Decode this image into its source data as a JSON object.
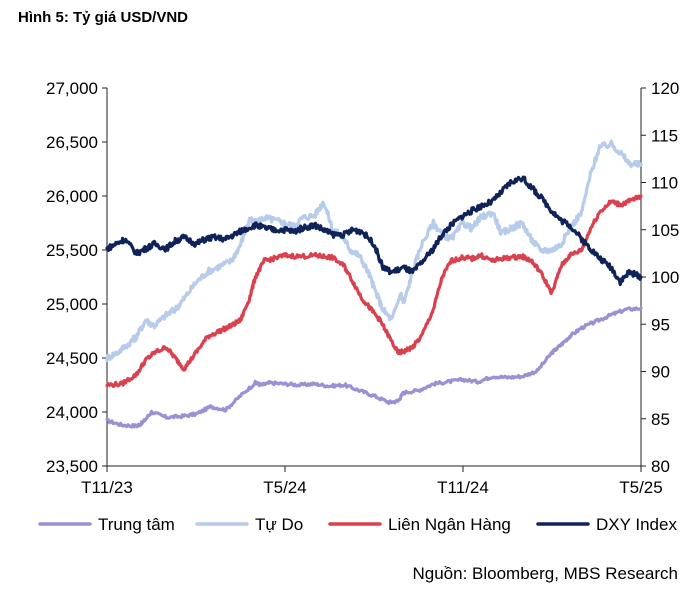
{
  "title": "Hình 5: Tỷ giá USD/VND",
  "source": "Nguồn: Bloomberg, MBS Research",
  "colors": {
    "trung_tam": "#9C8FD3",
    "tu_do": "#B7CCEB",
    "lien_ngan_hang": "#D9414F",
    "dxy": "#0F2358",
    "axis": "#222222"
  },
  "chart_data": {
    "type": "line",
    "x_ticks": [
      "T11/23",
      "T5/24",
      "T11/24",
      "T5/25"
    ],
    "x_tick_positions": [
      0,
      6,
      12,
      18
    ],
    "x_range": [
      0,
      18
    ],
    "y_left": {
      "ylim": [
        23500,
        27000
      ],
      "ticks": [
        23500,
        24000,
        24500,
        25000,
        25500,
        26000,
        26500,
        27000
      ],
      "tick_labels": [
        "23,500",
        "24,000",
        "24,500",
        "25,000",
        "25,500",
        "26,000",
        "26,500",
        "27,000"
      ]
    },
    "y_right": {
      "ylim": [
        80,
        120
      ],
      "ticks": [
        80,
        85,
        90,
        95,
        100,
        105,
        110,
        115,
        120
      ],
      "tick_labels": [
        "80",
        "85",
        "90",
        "95",
        "100",
        "105",
        "110",
        "115",
        "120"
      ]
    },
    "grid": false,
    "legend": "bottom",
    "series": [
      {
        "name": "Trung tâm",
        "axis": "left",
        "x": [
          0,
          0.5,
          1,
          1.2,
          1.5,
          2,
          2.5,
          3,
          3.5,
          4,
          4.5,
          5,
          5.2,
          5.5,
          6,
          6.5,
          7,
          7.5,
          8,
          8.5,
          9,
          9.5,
          9.8,
          10,
          10.5,
          11,
          11.5,
          12,
          12.5,
          13,
          13.5,
          14,
          14.5,
          15,
          15.3,
          15.6,
          16,
          16.5,
          17,
          17.5,
          18
        ],
        "values": [
          23920,
          23880,
          23870,
          23900,
          24000,
          23950,
          23960,
          23980,
          24050,
          24020,
          24150,
          24270,
          24250,
          24270,
          24260,
          24250,
          24260,
          24240,
          24250,
          24200,
          24150,
          24090,
          24100,
          24180,
          24200,
          24260,
          24280,
          24300,
          24280,
          24330,
          24320,
          24330,
          24380,
          24550,
          24620,
          24700,
          24780,
          24840,
          24900,
          24950,
          24960
        ]
      },
      {
        "name": "Tự Do",
        "axis": "left",
        "x": [
          0,
          0.4,
          0.8,
          1,
          1.3,
          1.6,
          2,
          2.3,
          2.6,
          3,
          3.4,
          3.8,
          4.2,
          4.5,
          4.8,
          5,
          5.3,
          5.6,
          6,
          6.3,
          6.6,
          7,
          7.3,
          7.6,
          8,
          8.2,
          8.5,
          8.8,
          9,
          9.3,
          9.6,
          9.9,
          10,
          10.3,
          10.6,
          11,
          11.3,
          11.6,
          12,
          12.3,
          12.6,
          13,
          13.3,
          13.6,
          14,
          14.3,
          14.6,
          15,
          15.3,
          15.6,
          16,
          16.3,
          16.6,
          17,
          17.3,
          17.6,
          18
        ],
        "values": [
          24500,
          24560,
          24650,
          24700,
          24850,
          24800,
          24900,
          24950,
          25050,
          25200,
          25300,
          25350,
          25400,
          25550,
          25780,
          25750,
          25800,
          25780,
          25750,
          25720,
          25800,
          25820,
          25950,
          25700,
          25600,
          25500,
          25450,
          25300,
          25150,
          24950,
          24850,
          25100,
          25000,
          25300,
          25550,
          25750,
          25650,
          25600,
          25750,
          25700,
          25800,
          25850,
          25650,
          25700,
          25750,
          25600,
          25500,
          25500,
          25550,
          25700,
          25850,
          26200,
          26450,
          26480,
          26400,
          26300,
          26290
        ]
      },
      {
        "name": "Liên Ngân Hàng",
        "axis": "left",
        "x": [
          0,
          0.5,
          1,
          1.3,
          1.6,
          2,
          2.3,
          2.6,
          3,
          3.4,
          3.8,
          4.2,
          4.5,
          4.8,
          5,
          5.3,
          5.6,
          6,
          6.5,
          7,
          7.3,
          7.6,
          8,
          8.3,
          8.6,
          8.9,
          9.2,
          9.5,
          9.8,
          10,
          10.3,
          10.6,
          11,
          11.3,
          11.6,
          12,
          12.3,
          12.6,
          13,
          13.3,
          13.6,
          14,
          14.3,
          14.6,
          15,
          15.3,
          15.6,
          16,
          16.3,
          16.6,
          17,
          17.3,
          17.6,
          18
        ],
        "values": [
          24250,
          24260,
          24350,
          24480,
          24550,
          24600,
          24500,
          24400,
          24550,
          24700,
          24750,
          24800,
          24850,
          25050,
          25250,
          25400,
          25420,
          25450,
          25440,
          25450,
          25440,
          25430,
          25350,
          25200,
          25050,
          24950,
          24850,
          24700,
          24550,
          24560,
          24600,
          24700,
          24950,
          25250,
          25400,
          25430,
          25420,
          25450,
          25400,
          25420,
          25430,
          25440,
          25400,
          25300,
          25100,
          25350,
          25450,
          25500,
          25700,
          25850,
          25950,
          25920,
          25950,
          26000
        ]
      },
      {
        "name": "DXY Index",
        "axis": "right",
        "x": [
          0,
          0.3,
          0.6,
          1,
          1.3,
          1.6,
          2,
          2.3,
          2.6,
          3,
          3.3,
          3.6,
          4,
          4.3,
          4.6,
          5,
          5.3,
          5.6,
          6,
          6.3,
          6.6,
          7,
          7.3,
          7.6,
          8,
          8.3,
          8.6,
          9,
          9.3,
          9.6,
          10,
          10.3,
          10.6,
          11,
          11.3,
          11.6,
          12,
          12.3,
          12.6,
          13,
          13.3,
          13.6,
          14,
          14.3,
          14.6,
          15,
          15.3,
          15.6,
          16,
          16.3,
          16.6,
          17,
          17.3,
          17.6,
          18
        ],
        "values": [
          103,
          103.5,
          104,
          102.5,
          103,
          103.5,
          103,
          103.8,
          104.2,
          103.5,
          104,
          104.2,
          104,
          104.5,
          105,
          105.5,
          105.2,
          105,
          105,
          104.8,
          105.2,
          105.5,
          105,
          104.5,
          104.5,
          105,
          104.8,
          103.5,
          101,
          100.5,
          101,
          100.5,
          101.5,
          103,
          104.5,
          105.5,
          106.5,
          107,
          107.5,
          108,
          109,
          110,
          110.5,
          109.5,
          108.5,
          107,
          106,
          105.5,
          104,
          103,
          102,
          101,
          99.5,
          100.5,
          100
        ]
      }
    ]
  }
}
